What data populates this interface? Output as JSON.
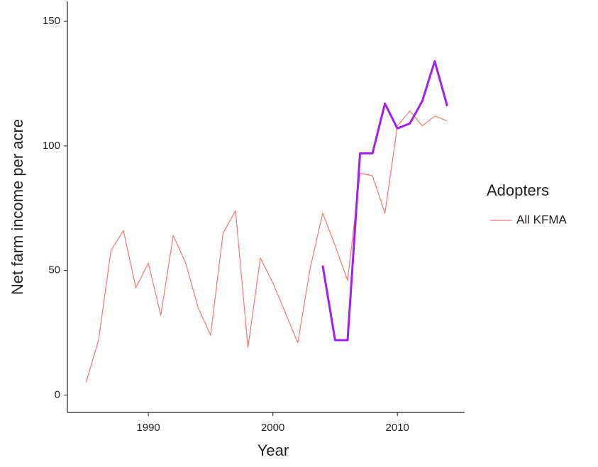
{
  "chart_data": {
    "type": "line",
    "x_label": "Year",
    "y_label": "Net farm income per acre",
    "legend_title": "Adopters",
    "x": [
      1985,
      1986,
      1987,
      1988,
      1989,
      1990,
      1991,
      1992,
      1993,
      1994,
      1995,
      1996,
      1997,
      1998,
      1999,
      2000,
      2001,
      2002,
      2003,
      2004,
      2005,
      2006,
      2007,
      2008,
      2009,
      2010,
      2011,
      2012,
      2013,
      2014
    ],
    "series": [
      {
        "name": "All KFMA",
        "color": "#f8766d",
        "values": [
          5,
          22,
          58,
          66,
          43,
          53,
          32,
          64,
          53,
          35,
          24,
          65,
          74,
          19,
          55,
          45,
          33,
          21,
          51,
          73,
          60,
          46,
          89,
          88,
          73,
          108,
          114,
          108,
          112,
          110
        ]
      },
      {
        "color": "#a020f0",
        "values": [
          null,
          null,
          null,
          null,
          null,
          null,
          null,
          null,
          null,
          null,
          null,
          null,
          null,
          null,
          null,
          null,
          null,
          null,
          null,
          52,
          22,
          22,
          97,
          97,
          117,
          107,
          109,
          118,
          134,
          116
        ]
      }
    ],
    "xlim": [
      1983.5,
      2015.4
    ],
    "xticks": [
      1990,
      2000,
      2010
    ],
    "ylim": [
      -7,
      158
    ],
    "yticks": [
      0,
      50,
      100,
      150
    ]
  }
}
